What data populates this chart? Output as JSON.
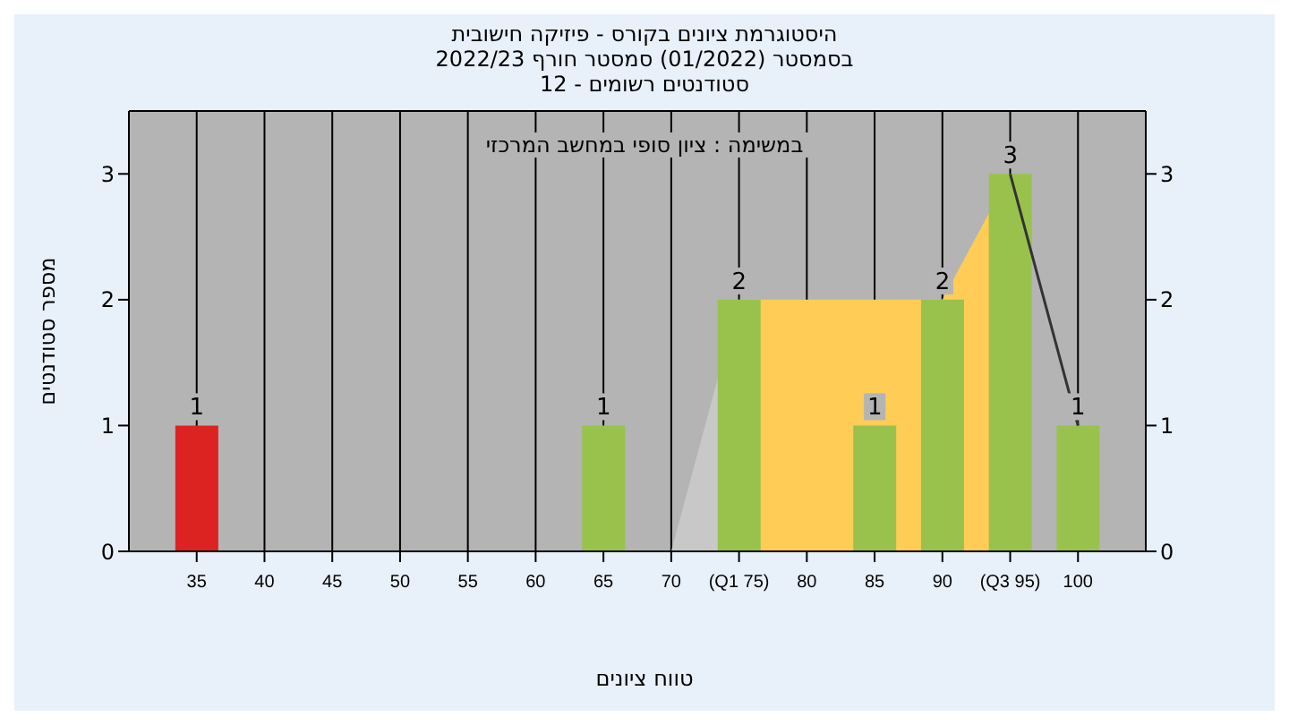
{
  "chart_data": {
    "type": "bar",
    "title": "היסטוגרמת ציונים בקורס - פיזיקה חישובית",
    "subtitle": "בסמסטר  (01/2022)  סמסטר חורף 2022/23\nסטודנטים רשומים - 12",
    "xlabel": "טווח ציונים",
    "ylabel": "מספר סטודנטים",
    "annotations": [
      "במשימה : ציון סופי במחשב המרכזי"
    ],
    "x": [
      35,
      65,
      75,
      85,
      90,
      95,
      100
    ],
    "series": [
      {
        "type": "area",
        "color": "#c8c8c8",
        "x": [
          70,
          75
        ],
        "values": [
          0,
          2
        ]
      },
      {
        "type": "area",
        "color": "#ffcc55",
        "x": [
          75,
          90,
          95
        ],
        "values": [
          2,
          2,
          3
        ]
      },
      {
        "type": "line",
        "color": "#333333",
        "x": [
          95,
          100
        ],
        "values": [
          3,
          1
        ]
      },
      {
        "colors": [
          "#dd2222",
          "#99c24d",
          "#99c24d",
          "#99c24d",
          "#99c24d",
          "#99c24d",
          "#99c24d"
        ],
        "values": [
          1,
          1,
          2,
          1,
          2,
          3,
          1
        ],
        "value_labels": [
          "1",
          "1",
          "2",
          "1",
          "2",
          "3",
          "1"
        ]
      }
    ],
    "xlim": [
      30,
      105
    ],
    "xticks": [
      35,
      40,
      45,
      50,
      55,
      60,
      65,
      70,
      {
        "value": 75,
        "label": "(Q1 75)"
      },
      80,
      85,
      90,
      {
        "value": 95,
        "label": "(Q3 95)"
      },
      100
    ],
    "ylim": [
      0,
      3.5
    ],
    "yticks": [
      0,
      1,
      2,
      3
    ],
    "y2lim": [
      0,
      3.5
    ],
    "y2ticks": [
      0,
      1,
      2,
      3
    ],
    "grid": true,
    "legend": false
  }
}
